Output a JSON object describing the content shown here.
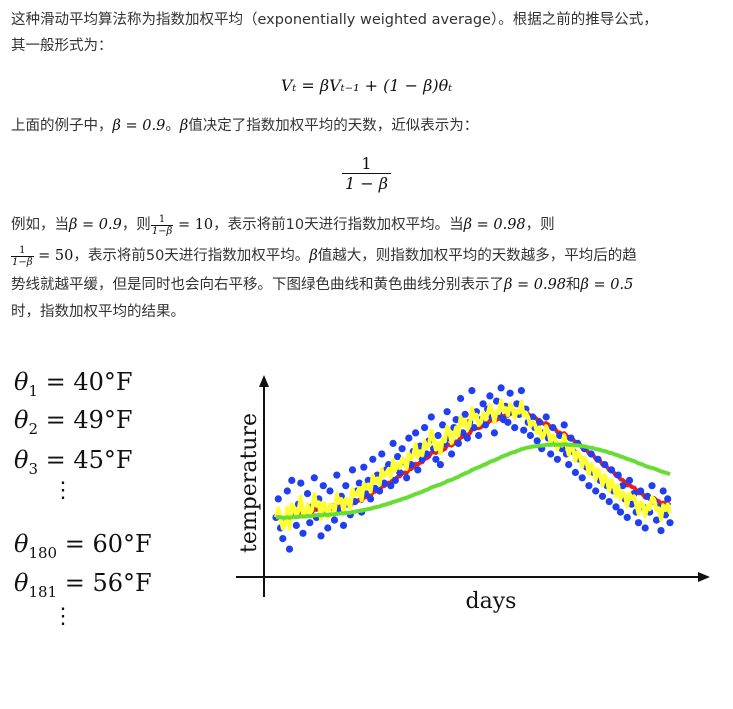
{
  "article": {
    "p1_line1": "这种滑动平均算法称为指数加权平均（exponentially weighted average）。根据之前的推导公式，",
    "p1_line2": "其一般形式为：",
    "formula": "Vₜ = βVₜ₋₁ + (1 − β)θₜ",
    "p2_pre": "上面的例子中，",
    "p2_beta": "β = 0.9",
    "p2_mid": "。",
    "p2_beta2": "β",
    "p2_post": "值决定了指数加权平均的天数，近似表示为：",
    "approx_num": "1",
    "approx_den": "1 − β",
    "p3_a": "例如，当",
    "p3_b": "β = 0.9",
    "p3_c": "，则",
    "p3_frac_num": "1",
    "p3_frac_den": "1−β",
    "p3_d": " = 10",
    "p3_e": "，表示将前10天进行指数加权平均。当",
    "p3_f": "β = 0.98",
    "p3_g": "，则",
    "p4_frac_num": "1",
    "p4_frac_den": "1−β",
    "p4_a": " = 50",
    "p4_b": "，表示将前50天进行指数加权平均。",
    "p4_c": "β",
    "p4_d": "值越大，则指数加权平均的天数越多，平均后的趋",
    "p5_a": "势线就越平缓，但是同时也会向右平移。下图绿色曲线和黄色曲线分别表示了",
    "p5_b": "β = 0.98",
    "p5_c": "和",
    "p5_d": "β = 0.5",
    "p6": "时，指数加权平均的结果。"
  },
  "figure": {
    "thetas": [
      {
        "sub": "1",
        "value": " = 40°F"
      },
      {
        "sub": "2",
        "value": " = 49°F"
      },
      {
        "sub": "3",
        "value": " = 45°F"
      },
      {
        "sub": "180",
        "value": " = 60°F"
      },
      {
        "sub": "181",
        "value": " = 56°F"
      }
    ],
    "theta_symbol": "θ",
    "vdots": "⋮"
  },
  "chart_data": {
    "type": "line",
    "xlabel": "days",
    "ylabel": "temperature",
    "colors": {
      "points": "#1f3ff0",
      "red": "#e8201a",
      "yellow": "#ffff33",
      "green": "#66dd33"
    },
    "series": [
      {
        "name": "",
        "kind": "scatter",
        "color": "#1f3ff0",
        "values": [
          48,
          55,
          44,
          40,
          47,
          58,
          36,
          62,
          50,
          45,
          53,
          61,
          42,
          49,
          57,
          46,
          52,
          63,
          48,
          55,
          41,
          60,
          50,
          44,
          58,
          52,
          47,
          64,
          51,
          56,
          45,
          60,
          53,
          49,
          66,
          54,
          58,
          61,
          50,
          67,
          57,
          62,
          55,
          70,
          59,
          64,
          58,
          72,
          61,
          66,
          68,
          60,
          76,
          62,
          71,
          65,
          74,
          69,
          63,
          78,
          68,
          73,
          80,
          66,
          75,
          70,
          82,
          72,
          77,
          86,
          74,
          70,
          79,
          68,
          83,
          76,
          88,
          78,
          72,
          82,
          85,
          76,
          93,
          80,
          87,
          78,
          84,
          96,
          82,
          88,
          79,
          85,
          91,
          83,
          89,
          94,
          86,
          80,
          92,
          87,
          97,
          85,
          90,
          84,
          95,
          88,
          82,
          91,
          87,
          96,
          81,
          89,
          84,
          79,
          86,
          82,
          77,
          84,
          74,
          80,
          86,
          78,
          72,
          82,
          76,
          70,
          79,
          74,
          83,
          72,
          68,
          78,
          73,
          65,
          76,
          70,
          63,
          74,
          67,
          60,
          72,
          65,
          58,
          70,
          62,
          56,
          68,
          60,
          54,
          66,
          58,
          52,
          64,
          50,
          60,
          55,
          48,
          62,
          53,
          57,
          50,
          46,
          58,
          52,
          44,
          56,
          50,
          60,
          54,
          47,
          52,
          43,
          58,
          49,
          55,
          46
        ]
      },
      {
        "name": "",
        "kind": "line",
        "color": "#ffff33"
      },
      {
        "name": "",
        "kind": "line",
        "color": "#e8201a"
      },
      {
        "name": "",
        "kind": "line",
        "color": "#66dd33"
      }
    ]
  }
}
